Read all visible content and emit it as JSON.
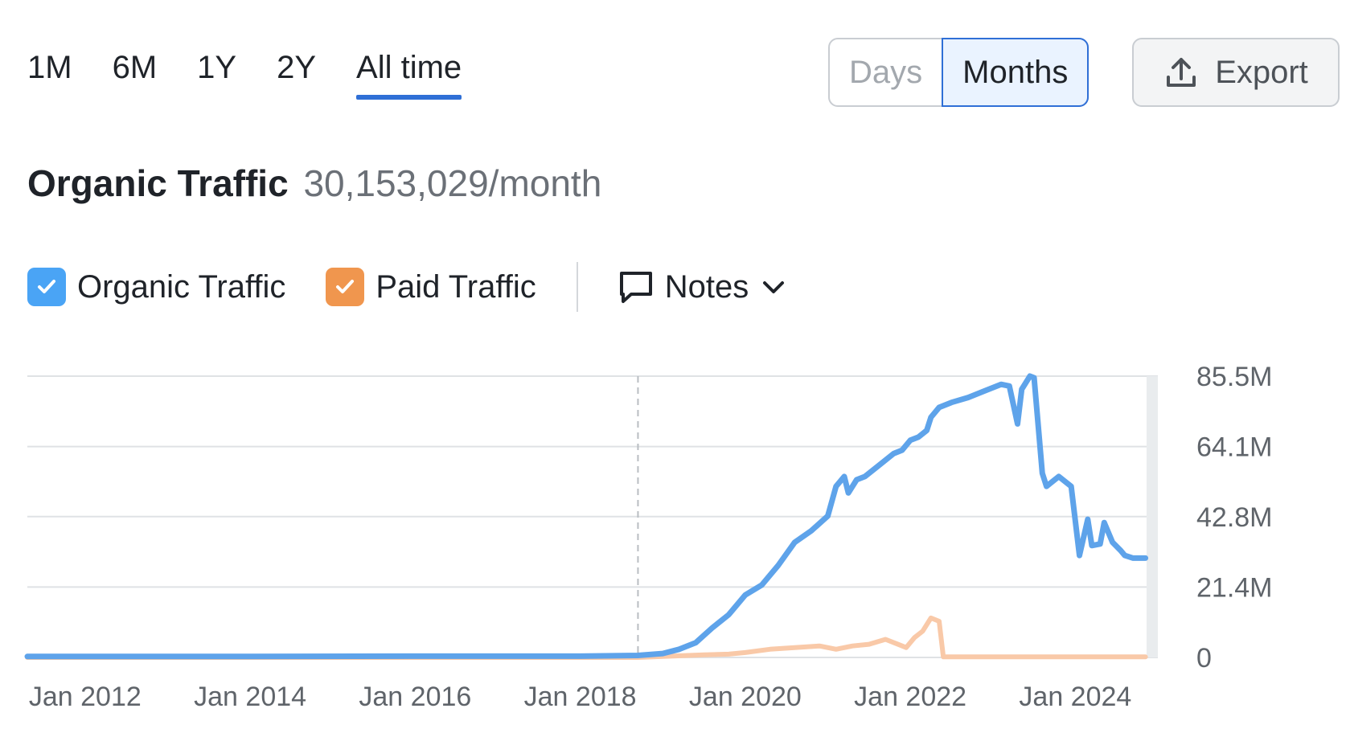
{
  "range_tabs": [
    {
      "label": "1M"
    },
    {
      "label": "6M"
    },
    {
      "label": "1Y"
    },
    {
      "label": "2Y"
    },
    {
      "label": "All time"
    }
  ],
  "active_range": "All time",
  "granularity": {
    "days_label": "Days",
    "months_label": "Months",
    "active": "Months"
  },
  "export_label": "Export",
  "headline": {
    "title": "Organic Traffic",
    "value": "30,153,029/month"
  },
  "legend": {
    "organic_label": "Organic Traffic",
    "paid_label": "Paid Traffic",
    "notes_label": "Notes",
    "organic_checked": true,
    "paid_checked": true
  },
  "colors": {
    "organic": "#5ea3ea",
    "paid": "#f9c9a8",
    "organic_checkbox": "#4aa4f5",
    "paid_checkbox": "#f0964e",
    "accent": "#2f6fd6"
  },
  "icons": {
    "export": "upload-icon",
    "notes": "speech-bubble-icon",
    "notes_toggle": "chevron-down-icon",
    "check": "check-icon"
  },
  "chart_data": {
    "type": "line",
    "y_ticks": [
      "85.5M",
      "64.1M",
      "42.8M",
      "21.4M",
      "0"
    ],
    "y_tick_values": [
      85.5,
      64.1,
      42.8,
      21.4,
      0
    ],
    "x_ticks": [
      "Jan 2012",
      "Jan 2014",
      "Jan 2016",
      "Jan 2018",
      "Jan 2020",
      "Jan 2022",
      "Jan 2024"
    ],
    "x_tick_values": [
      2012,
      2014,
      2016,
      2018,
      2020,
      2022,
      2024
    ],
    "xlim": [
      2011.3,
      2025.0
    ],
    "ylim": [
      0,
      85.5
    ],
    "y_unit": "M",
    "y_axis_position": "right",
    "grid": true,
    "marker_line_x": 2018.7,
    "series": [
      {
        "name": "Organic Traffic",
        "x": [
          2011.3,
          2014.0,
          2016.0,
          2018.0,
          2018.7,
          2019.0,
          2019.2,
          2019.4,
          2019.6,
          2019.8,
          2020.0,
          2020.2,
          2020.4,
          2020.6,
          2020.8,
          2021.0,
          2021.1,
          2021.2,
          2021.25,
          2021.35,
          2021.45,
          2021.6,
          2021.8,
          2021.9,
          2022.0,
          2022.1,
          2022.2,
          2022.25,
          2022.35,
          2022.5,
          2022.7,
          2022.9,
          2023.1,
          2023.2,
          2023.3,
          2023.35,
          2023.45,
          2023.5,
          2023.6,
          2023.65,
          2023.7,
          2023.8,
          2023.95,
          2024.05,
          2024.15,
          2024.2,
          2024.3,
          2024.35,
          2024.45,
          2024.55,
          2024.6,
          2024.7,
          2024.75,
          2024.85
        ],
        "values": [
          0.3,
          0.3,
          0.4,
          0.4,
          0.6,
          1.2,
          2.5,
          4.5,
          9.0,
          13.0,
          19.0,
          22.0,
          28.0,
          35.0,
          38.5,
          43.0,
          52.0,
          55.0,
          50.0,
          54.0,
          55.0,
          58.0,
          62.0,
          63.0,
          66.0,
          67.0,
          69.0,
          73.0,
          76.0,
          77.5,
          79.0,
          81.0,
          83.0,
          82.5,
          71.0,
          81.5,
          85.5,
          85.0,
          56.0,
          52.0,
          53.0,
          55.0,
          52.0,
          31.0,
          42.0,
          34.0,
          34.5,
          41.0,
          35.0,
          32.5,
          31.0,
          30.2,
          30.2,
          30.2
        ]
      },
      {
        "name": "Paid Traffic",
        "x": [
          2011.3,
          2018.7,
          2019.0,
          2019.5,
          2019.8,
          2020.0,
          2020.3,
          2020.6,
          2020.9,
          2021.1,
          2021.3,
          2021.5,
          2021.7,
          2021.85,
          2021.95,
          2022.05,
          2022.15,
          2022.25,
          2022.35,
          2022.4,
          2022.6,
          2023.0,
          2024.0,
          2024.85
        ],
        "values": [
          0,
          0,
          0.3,
          0.8,
          1.0,
          1.5,
          2.5,
          3.0,
          3.5,
          2.5,
          3.5,
          4.0,
          5.5,
          4.0,
          3.0,
          6.0,
          8.0,
          12.0,
          11.0,
          0.2,
          0.2,
          0.2,
          0.2,
          0.2
        ]
      }
    ]
  }
}
